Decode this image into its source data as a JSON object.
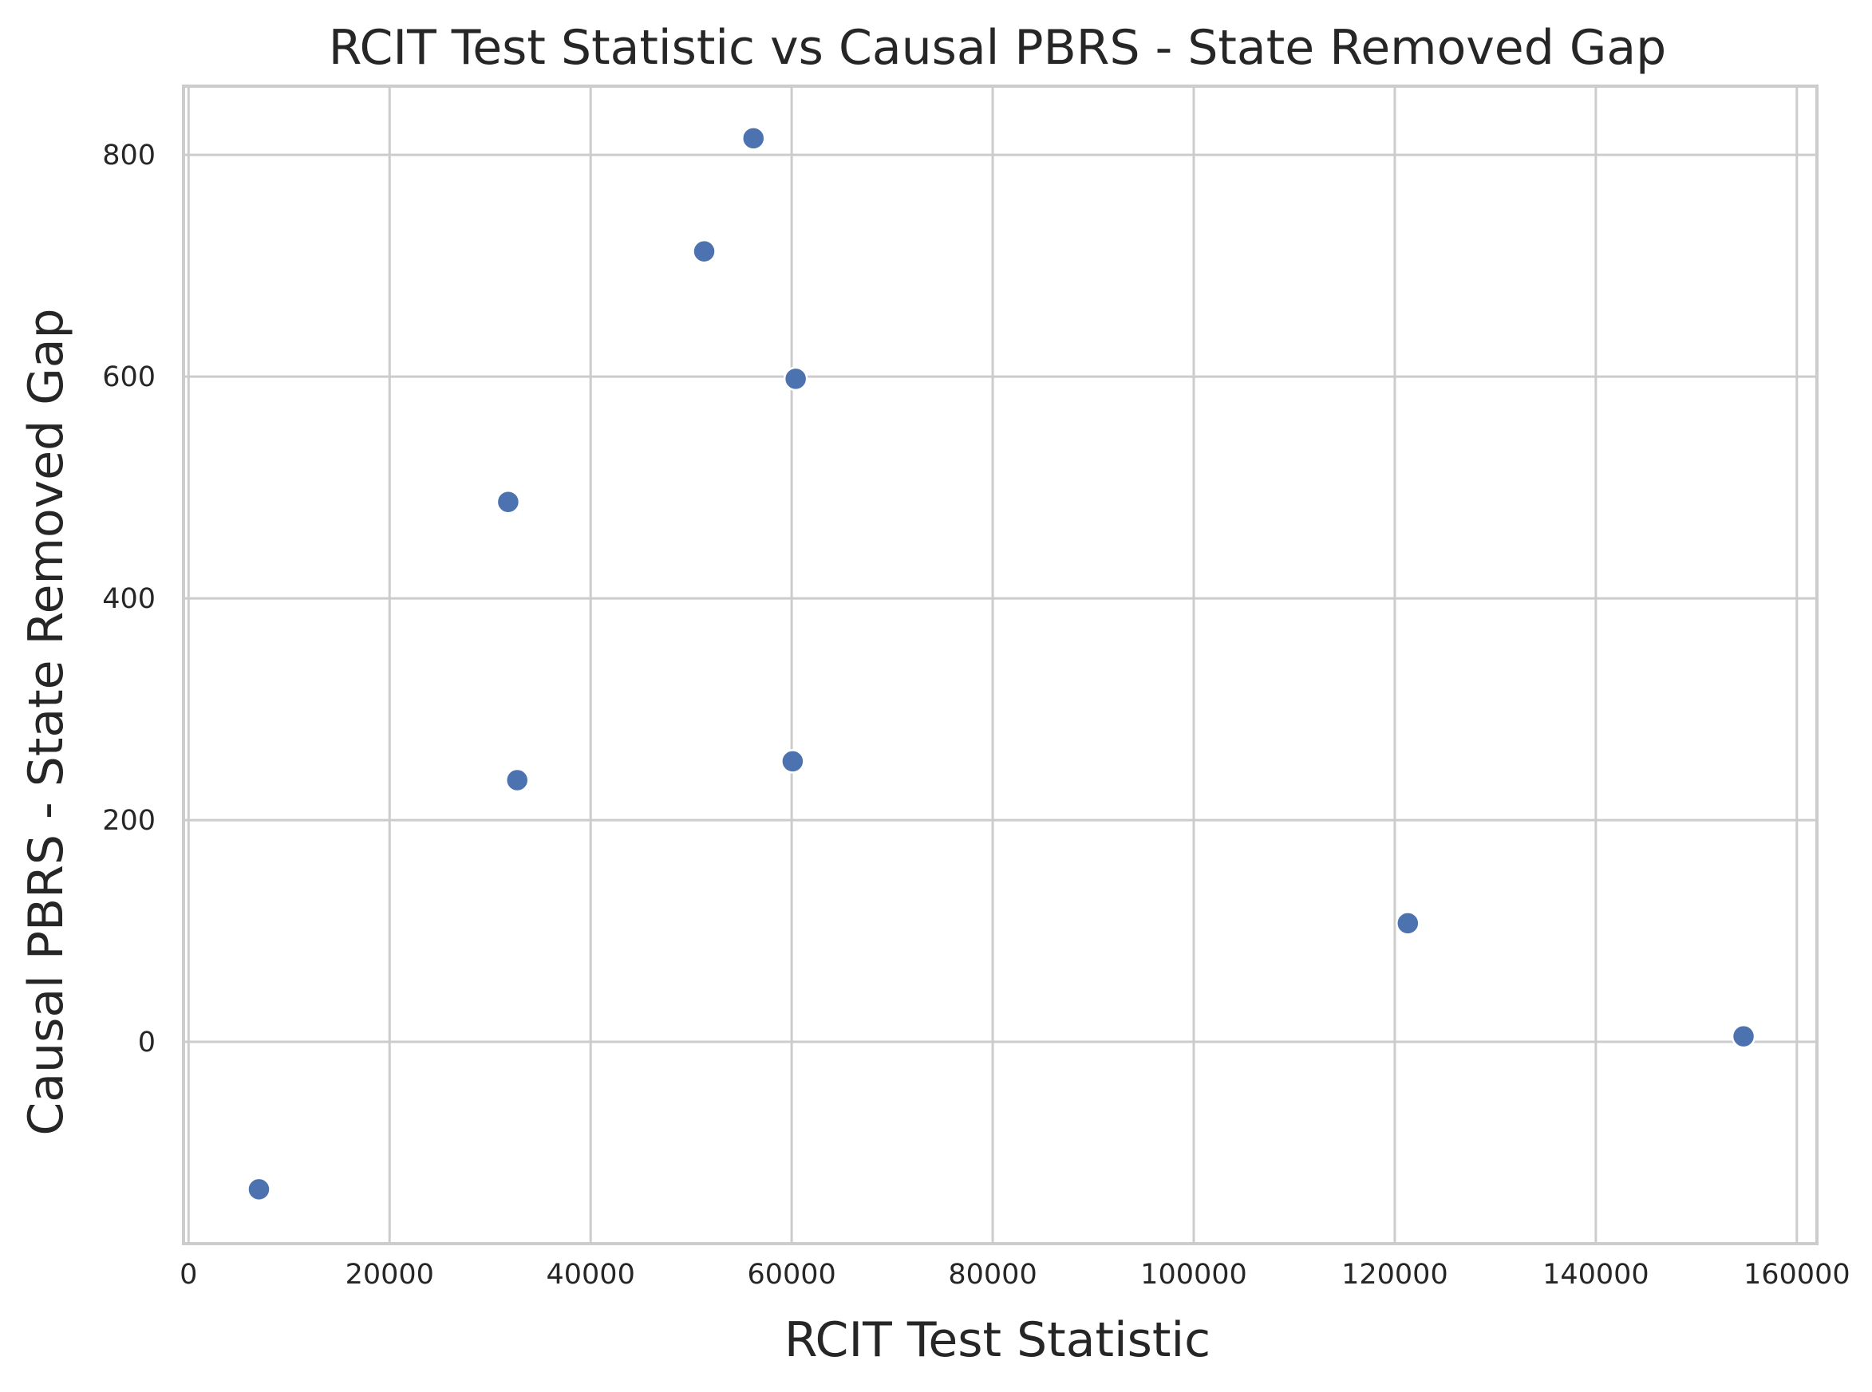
{
  "chart_data": {
    "type": "scatter",
    "title": "RCIT Test Statistic vs Causal PBRS - State Removed Gap",
    "xlabel": "RCIT Test Statistic",
    "ylabel": "Causal PBRS - State Removed Gap",
    "xlim": [
      -500,
      162000
    ],
    "ylim": [
      -182,
      862
    ],
    "xticks": [
      0,
      20000,
      40000,
      60000,
      80000,
      100000,
      120000,
      140000,
      160000
    ],
    "yticks": [
      0,
      200,
      400,
      600,
      800
    ],
    "grid": true,
    "marker_color": "#4c72b0",
    "points": [
      {
        "x": 7000,
        "y": -133
      },
      {
        "x": 31800,
        "y": 487
      },
      {
        "x": 32700,
        "y": 236
      },
      {
        "x": 51300,
        "y": 713
      },
      {
        "x": 56200,
        "y": 815
      },
      {
        "x": 60100,
        "y": 253
      },
      {
        "x": 60400,
        "y": 598
      },
      {
        "x": 121300,
        "y": 107
      },
      {
        "x": 154700,
        "y": 5
      }
    ]
  }
}
